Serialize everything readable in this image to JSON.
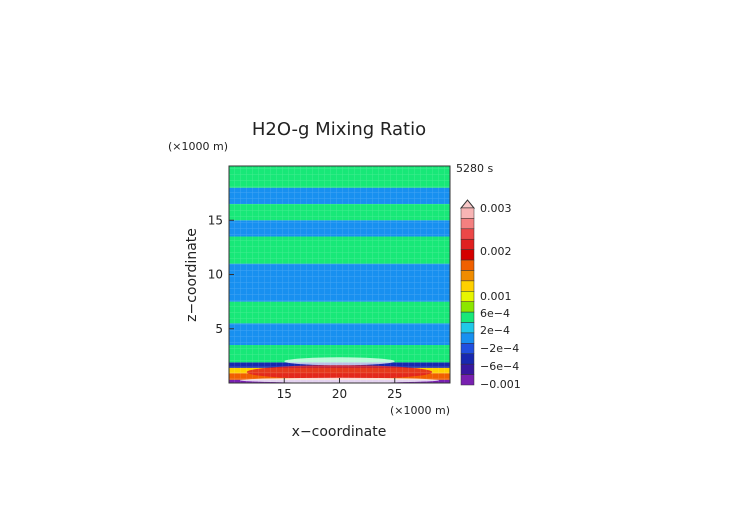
{
  "chart_data": {
    "type": "heatmap",
    "title": "H2O-g Mixing Ratio",
    "time_label": "5280 s",
    "xlabel": "x−coordinate",
    "ylabel": "z−coordinate",
    "x_unit": "(×1000 m)",
    "y_unit": "(×1000 m)",
    "xlim": [
      10,
      30
    ],
    "ylim": [
      0,
      20
    ],
    "x_ticks": [
      "15",
      "20",
      "25"
    ],
    "x_tick_values": [
      15,
      20,
      25
    ],
    "y_ticks": [
      "5",
      "10",
      "15"
    ],
    "y_tick_values": [
      5,
      10,
      15
    ],
    "colorbar": {
      "labels": [
        "0.003",
        "0.002",
        "0.001",
        "6e−4",
        "2e−4",
        "−2e−4",
        "−6e−4",
        "−0.001"
      ],
      "colors": [
        "#f8b4b4",
        "#f48080",
        "#ec4848",
        "#e02020",
        "#d40000",
        "#f06000",
        "#f08c00",
        "#ffd000",
        "#e6f500",
        "#8ce600",
        "#18e878",
        "#20c8e8",
        "#1890f0",
        "#2050e0",
        "#1828b0",
        "#3818a0",
        "#7820b0"
      ]
    },
    "field_bands": [
      {
        "z_bottom": 0.0,
        "z_top": 0.3,
        "value_class": "-0.001"
      },
      {
        "z_bottom": 0.3,
        "z_top": 0.9,
        "value_class": "0.001"
      },
      {
        "z_bottom": 0.9,
        "z_top": 1.4,
        "value_class": "6e-4"
      },
      {
        "z_bottom": 1.4,
        "z_top": 1.9,
        "value_class": "-6e-4"
      },
      {
        "z_bottom": 1.9,
        "z_top": 3.5,
        "value_class": "2e-4"
      },
      {
        "z_bottom": 3.5,
        "z_top": 5.5,
        "value_class": "-2e-4"
      },
      {
        "z_bottom": 5.5,
        "z_top": 7.5,
        "value_class": "2e-4"
      },
      {
        "z_bottom": 7.5,
        "z_top": 11.0,
        "value_class": "-2e-4"
      },
      {
        "z_bottom": 11.0,
        "z_top": 13.5,
        "value_class": "2e-4"
      },
      {
        "z_bottom": 13.5,
        "z_top": 15.0,
        "value_class": "-2e-4"
      },
      {
        "z_bottom": 15.0,
        "z_top": 16.5,
        "value_class": "2e-4"
      },
      {
        "z_bottom": 16.5,
        "z_top": 18.0,
        "value_class": "-2e-4"
      },
      {
        "z_bottom": 18.0,
        "z_top": 20.0,
        "value_class": "2e-4"
      }
    ]
  }
}
